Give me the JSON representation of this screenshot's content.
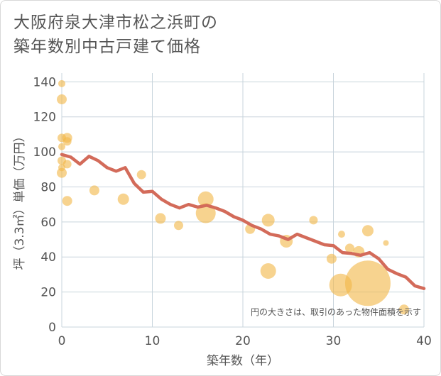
{
  "title_line1": "大阪府泉大津市松之浜町の",
  "title_line2": "築年数別中古戸建て価格",
  "colors": {
    "bubble": "#f2b84b",
    "line": "#d36b5a",
    "grid": "#c8d4dc",
    "plot_bg": "#ffffff",
    "axis_text": "#555555"
  },
  "chart_data": {
    "type": "scatter",
    "xlabel": "築年数（年）",
    "ylabel": "坪（3.3㎡）単価（万円）",
    "xlim": [
      0,
      40
    ],
    "ylim": [
      0,
      145
    ],
    "xticks": [
      0,
      10,
      20,
      30,
      40
    ],
    "yticks": [
      0,
      20,
      40,
      60,
      80,
      100,
      120,
      140
    ],
    "grid": true,
    "note": "円の大きさは、取引のあった物件面積を示す",
    "bubbles": [
      {
        "x": 0,
        "y": 139,
        "s": 5
      },
      {
        "x": 0,
        "y": 130,
        "s": 7
      },
      {
        "x": 0,
        "y": 108,
        "s": 6
      },
      {
        "x": 0,
        "y": 103,
        "s": 5
      },
      {
        "x": 0,
        "y": 95,
        "s": 6
      },
      {
        "x": 0,
        "y": 91,
        "s": 5
      },
      {
        "x": 0,
        "y": 88,
        "s": 7
      },
      {
        "x": 0.6,
        "y": 108,
        "s": 7
      },
      {
        "x": 0.6,
        "y": 106,
        "s": 6
      },
      {
        "x": 0.6,
        "y": 93,
        "s": 6
      },
      {
        "x": 0.6,
        "y": 72,
        "s": 7
      },
      {
        "x": 3.6,
        "y": 78,
        "s": 7
      },
      {
        "x": 6.8,
        "y": 73,
        "s": 8
      },
      {
        "x": 8.8,
        "y": 87,
        "s": 6.5
      },
      {
        "x": 10.9,
        "y": 62,
        "s": 7.5
      },
      {
        "x": 12.9,
        "y": 58,
        "s": 6.5
      },
      {
        "x": 15.9,
        "y": 73,
        "s": 11
      },
      {
        "x": 15.9,
        "y": 65,
        "s": 14
      },
      {
        "x": 20.8,
        "y": 56,
        "s": 7
      },
      {
        "x": 22.8,
        "y": 61,
        "s": 9
      },
      {
        "x": 22.8,
        "y": 32,
        "s": 11
      },
      {
        "x": 24.8,
        "y": 49,
        "s": 9
      },
      {
        "x": 27.8,
        "y": 61,
        "s": 6
      },
      {
        "x": 29.8,
        "y": 39,
        "s": 7
      },
      {
        "x": 30.8,
        "y": 24,
        "s": 16
      },
      {
        "x": 30.9,
        "y": 53,
        "s": 5
      },
      {
        "x": 31.8,
        "y": 45,
        "s": 6.5
      },
      {
        "x": 32.8,
        "y": 43,
        "s": 8
      },
      {
        "x": 33.8,
        "y": 55,
        "s": 8
      },
      {
        "x": 33.8,
        "y": 25,
        "s": 32
      },
      {
        "x": 35.8,
        "y": 48,
        "s": 4
      },
      {
        "x": 37.8,
        "y": 10,
        "s": 7
      }
    ],
    "series": [
      {
        "x": [
          0,
          1,
          2,
          3,
          4,
          5,
          6,
          7,
          8,
          9,
          10,
          11,
          12,
          13,
          14,
          15,
          16,
          17,
          18,
          19,
          20,
          21,
          22,
          23,
          24,
          25,
          26,
          27,
          28,
          29,
          30,
          31,
          32,
          33,
          34,
          35,
          36,
          37,
          38,
          39,
          40
        ],
        "values": [
          98.5,
          97,
          93,
          97.5,
          95,
          91,
          89,
          91,
          82,
          77,
          77.5,
          73,
          70,
          68,
          70,
          68.5,
          69.5,
          68,
          66,
          63,
          61,
          58,
          56,
          53,
          52,
          50,
          53,
          51,
          49,
          47,
          46.5,
          42.5,
          42,
          41,
          42.5,
          39,
          33,
          30.5,
          28.5,
          23.5,
          22
        ]
      }
    ]
  }
}
